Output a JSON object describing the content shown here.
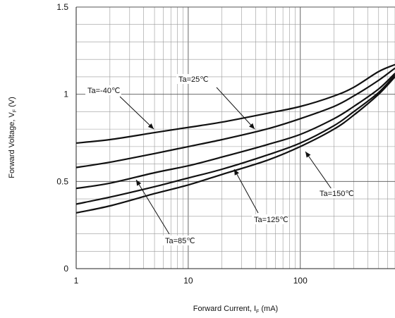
{
  "chart_data": {
    "type": "line",
    "xlabel": "Forward Current, I",
    "xlabel_sub": "F",
    "xlabel_unit": " (mA)",
    "ylabel": "Forward Voltage, V",
    "ylabel_sub": "F",
    "ylabel_unit": " (V)",
    "x_scale": "log",
    "xlim": [
      1,
      700
    ],
    "ylim": [
      0,
      1.5
    ],
    "x_ticks": [
      1,
      10,
      100
    ],
    "x_tick_labels": [
      "1",
      "10",
      "100"
    ],
    "y_ticks": [
      0,
      0.5,
      1,
      1.5
    ],
    "y_tick_labels": [
      "0",
      "0.5",
      "1",
      "1.5"
    ],
    "grid": true,
    "series": [
      {
        "name": "Ta=-40℃",
        "x": [
          1,
          2,
          5,
          10,
          20,
          50,
          100,
          200,
          300,
          500,
          700
        ],
        "y": [
          0.72,
          0.74,
          0.78,
          0.81,
          0.84,
          0.89,
          0.93,
          0.99,
          1.04,
          1.13,
          1.17
        ]
      },
      {
        "name": "Ta=25℃",
        "x": [
          1,
          2,
          5,
          10,
          20,
          50,
          100,
          200,
          300,
          500,
          700
        ],
        "y": [
          0.58,
          0.61,
          0.66,
          0.7,
          0.74,
          0.8,
          0.86,
          0.93,
          0.99,
          1.08,
          1.15
        ]
      },
      {
        "name": "Ta=85℃",
        "x": [
          1,
          2,
          5,
          10,
          20,
          50,
          100,
          200,
          300,
          500,
          700
        ],
        "y": [
          0.46,
          0.49,
          0.55,
          0.59,
          0.64,
          0.71,
          0.77,
          0.86,
          0.93,
          1.03,
          1.12
        ]
      },
      {
        "name": "Ta=125℃",
        "x": [
          1,
          2,
          5,
          10,
          20,
          50,
          100,
          200,
          300,
          500,
          700
        ],
        "y": [
          0.37,
          0.41,
          0.47,
          0.52,
          0.57,
          0.65,
          0.72,
          0.82,
          0.9,
          1.01,
          1.11
        ]
      },
      {
        "name": "Ta=150℃",
        "x": [
          1,
          2,
          5,
          10,
          20,
          50,
          100,
          200,
          300,
          500,
          700
        ],
        "y": [
          0.32,
          0.36,
          0.43,
          0.48,
          0.54,
          0.62,
          0.7,
          0.8,
          0.88,
          1.0,
          1.1
        ]
      }
    ],
    "annotations": [
      {
        "text": "Ta=-40℃",
        "series": 0
      },
      {
        "text": "Ta=25℃",
        "series": 1
      },
      {
        "text": "Ta=85℃",
        "series": 2
      },
      {
        "text": "Ta=125℃",
        "series": 3
      },
      {
        "text": "Ta=150℃",
        "series": 4
      }
    ]
  }
}
